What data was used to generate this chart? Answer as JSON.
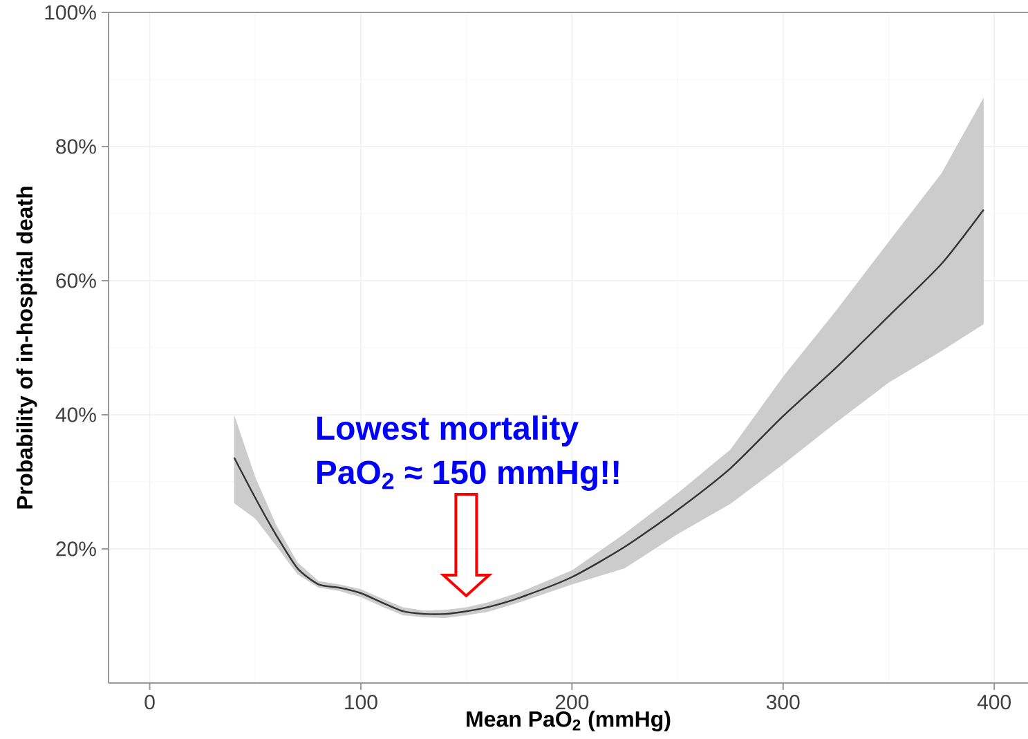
{
  "chart_data": {
    "type": "line",
    "xlabel": "Mean PaO$_{2}$ (mmHg)",
    "ylabel": "Probability of in-hospital death",
    "annotations": [
      "Lowest mortality",
      "PaO$_{2}$ ≈ 150 mmHg!!"
    ],
    "x": [
      40,
      50,
      60,
      70,
      80,
      90,
      100,
      110,
      120,
      130,
      140,
      150,
      160,
      175,
      200,
      225,
      250,
      275,
      300,
      325,
      350,
      375,
      395
    ],
    "series": [
      {
        "color": "#333333",
        "values": [
          33.6,
          27.6,
          22,
          17.1,
          14.7,
          14.2,
          13.4,
          12.0,
          10.7,
          10.3,
          10.3,
          10.7,
          11.3,
          12.7,
          15.8,
          20.3,
          25.8,
          32.0,
          39.8,
          47,
          54.7,
          62.5,
          70.6
        ],
        "lower": [
          26.8,
          24.5,
          20.4,
          16.2,
          14.2,
          13.7,
          12.8,
          11.4,
          10.1,
          9.8,
          9.7,
          10.1,
          10.6,
          12.0,
          14.7,
          17.1,
          22.2,
          26.7,
          32.6,
          38.8,
          44.8,
          49.5,
          53.5
        ],
        "upper": [
          40,
          30.7,
          23.5,
          18.0,
          15.2,
          14.7,
          14.0,
          12.6,
          11.3,
          10.8,
          10.9,
          11.3,
          12.0,
          13.5,
          16.8,
          22.3,
          28.3,
          34.8,
          45.7,
          55.5,
          65.8,
          76,
          87.3
        ]
      }
    ],
    "xlim": [
      -19.5,
      416
    ],
    "ylim": [
      0,
      100
    ],
    "xticks": [
      0,
      100,
      200,
      300,
      400
    ],
    "yticks": [
      {
        "value": 20,
        "label": "20%"
      },
      {
        "value": 40,
        "label": "40%"
      },
      {
        "value": 60,
        "label": "60%"
      },
      {
        "value": 80,
        "label": "80%"
      },
      {
        "value": 100,
        "label": "100%"
      }
    ],
    "grid": true
  }
}
